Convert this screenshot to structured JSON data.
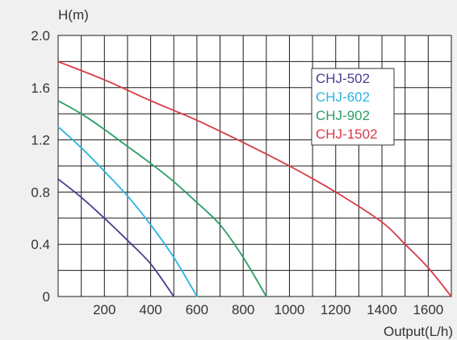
{
  "chart_data": {
    "type": "line",
    "ylabel": "H(m)",
    "xlabel": "Output(L/h)",
    "xlim": [
      0,
      1700
    ],
    "ylim": [
      0,
      2.0
    ],
    "x_ticks": [
      "200",
      "400",
      "600",
      "800",
      "1000",
      "1200",
      "1400",
      "1600"
    ],
    "y_ticks": [
      "0",
      "0.4",
      "0.8",
      "1.2",
      "1.6",
      "2.0"
    ],
    "grid": true,
    "legend_position": "top-right",
    "series": [
      {
        "name": "CHJ-502",
        "color": "#4a3d8f",
        "points": [
          [
            0,
            0.9
          ],
          [
            100,
            0.76
          ],
          [
            200,
            0.6
          ],
          [
            300,
            0.43
          ],
          [
            400,
            0.25
          ],
          [
            500,
            0
          ]
        ]
      },
      {
        "name": "CHJ-602",
        "color": "#2bb3e0",
        "points": [
          [
            0,
            1.3
          ],
          [
            100,
            1.14
          ],
          [
            200,
            0.96
          ],
          [
            300,
            0.77
          ],
          [
            400,
            0.55
          ],
          [
            500,
            0.3
          ],
          [
            600,
            0
          ]
        ]
      },
      {
        "name": "CHJ-902",
        "color": "#2a9e63",
        "points": [
          [
            0,
            1.5
          ],
          [
            100,
            1.4
          ],
          [
            200,
            1.28
          ],
          [
            300,
            1.15
          ],
          [
            400,
            1.02
          ],
          [
            500,
            0.88
          ],
          [
            600,
            0.72
          ],
          [
            700,
            0.55
          ],
          [
            800,
            0.3
          ],
          [
            900,
            0
          ]
        ]
      },
      {
        "name": "CHJ-1502",
        "color": "#d93a47",
        "points": [
          [
            0,
            1.8
          ],
          [
            200,
            1.66
          ],
          [
            400,
            1.5
          ],
          [
            600,
            1.35
          ],
          [
            800,
            1.18
          ],
          [
            1000,
            1.0
          ],
          [
            1200,
            0.8
          ],
          [
            1400,
            0.57
          ],
          [
            1500,
            0.4
          ],
          [
            1600,
            0.22
          ],
          [
            1700,
            0
          ]
        ]
      }
    ]
  }
}
